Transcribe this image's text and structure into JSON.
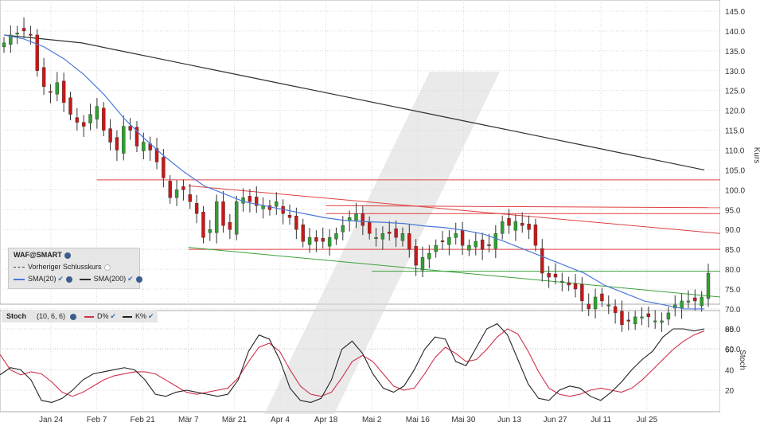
{
  "chart_data": [
    {
      "type": "candlestick",
      "symbol": "WAF@SMART",
      "ylabel": "Kurs",
      "ylim": [
        55,
        145
      ],
      "yticks": [
        "145.0",
        "140.0",
        "135.0",
        "130.0",
        "125.0",
        "120.0",
        "115.0",
        "110.0",
        "105.0",
        "100.0",
        "95.0",
        "90.0",
        "85.0",
        "80.0",
        "75.0",
        "70.0",
        "65.0",
        "60.0"
      ],
      "xticks": [
        "Jan 24",
        "Feb 7",
        "Feb 21",
        "Mär 7",
        "Mär 21",
        "Apr 4",
        "Apr 18",
        "Mai 2",
        "Mai 16",
        "Mai 30",
        "Jun 13",
        "Jun 27",
        "Jul 11",
        "Jul 25"
      ],
      "legend": [
        "Vorheriger Schlusskurs",
        "SMA(20)",
        "SMA(200)"
      ],
      "grid": true,
      "close": [
        137.0,
        139.0,
        139.5,
        140.0,
        139.0,
        130.0,
        126.0,
        124.5,
        127.0,
        122.0,
        119.0,
        117.0,
        116.0,
        119.0,
        121.0,
        115.0,
        112.0,
        110.0,
        116.0,
        115.0,
        111.0,
        112.0,
        110.0,
        107.0,
        103.0,
        98.0,
        100.0,
        100.0,
        97.0,
        94.0,
        88.0,
        90.0,
        97.0,
        91.0,
        90.0,
        97.0,
        98.0,
        97.0,
        96.0,
        96.0,
        95.0,
        97.0,
        94.0,
        93.0,
        90.0,
        87.0,
        88.0,
        87.0,
        87.0,
        88.0,
        89.0,
        91.0,
        93.0,
        94.0,
        91.0,
        89.0,
        88.0,
        89.0,
        89.0,
        88.0,
        89.0,
        85.0,
        81.0,
        83.0,
        84.0,
        86.0,
        87.0,
        88.0,
        89.0,
        86.0,
        86.0,
        87.0,
        85.0,
        86.0,
        89.0,
        92.0,
        91.0,
        92.0,
        91.0,
        90.0,
        86.0,
        79.0,
        78.0,
        78.0,
        77.0,
        76.0,
        75.0,
        72.0,
        70.0,
        73.0,
        72.0,
        71.0,
        69.0,
        66.0,
        67.0,
        68.0,
        68.0,
        68.0,
        67.0,
        67.0,
        69.0,
        71.0,
        72.0,
        72.0,
        72.0,
        73.0,
        79.0
      ],
      "ohlc_note": "daily candles, green = up, red = down",
      "sma20": [
        139.0,
        138.0,
        136.0,
        133.0,
        129.0,
        124.0,
        118.0,
        113.0,
        108.5,
        104.5,
        101.0,
        99.0,
        97.0,
        96.0,
        95.0,
        94.0,
        93.0,
        92.3,
        92.0,
        91.8,
        91.5,
        90.9,
        90.5,
        89.8,
        88.8,
        87.0,
        85.0,
        83.0,
        81.0,
        79.0,
        76.0,
        74.0,
        72.0,
        71.0,
        70.0,
        70.0
      ],
      "sma200": [
        139.0,
        138.0,
        137.0,
        135.0,
        133.0,
        131.0,
        129.0,
        127.0,
        125.0,
        123.0,
        121.0,
        119.0,
        117.0,
        115.0,
        113.0,
        111.0,
        109.0,
        107.0,
        105.0
      ],
      "trend_lines": [
        {
          "from": [
            "Feb 7",
            102.5
          ],
          "to": [
            "Jul 25+",
            102.5
          ],
          "color": "#e04040"
        },
        {
          "from": [
            "Mär 7",
            101.0
          ],
          "to": [
            "Jul 25+",
            89.0
          ],
          "color": "#e04040"
        },
        {
          "from": [
            "Apr 18",
            96.0
          ],
          "to": [
            "Jul 25+",
            95.5
          ],
          "color": "#e04040"
        },
        {
          "from": [
            "Apr 18",
            94.0
          ],
          "to": [
            "Jul 25+",
            94.0
          ],
          "color": "#e04040"
        },
        {
          "from": [
            "Mär 7",
            85.0
          ],
          "to": [
            "Jul 25+",
            85.0
          ],
          "color": "#e04040"
        },
        {
          "from": [
            "Mai 2",
            79.5
          ],
          "to": [
            "Jul 25+",
            79.5
          ],
          "color": "#3aa03a"
        },
        {
          "from": [
            "Mär 7",
            85.5
          ],
          "to": [
            "Jul 25+",
            73.0
          ],
          "color": "#3aa03a"
        }
      ]
    },
    {
      "type": "line",
      "title": "Stoch",
      "params": "(10, 6, 6)",
      "ylabel": "Stoch",
      "ylim": [
        0,
        90
      ],
      "yticks": [
        "80",
        "60",
        "40",
        "20"
      ],
      "series": [
        {
          "name": "D%",
          "color": "#d0304a",
          "values": [
            55,
            40,
            35,
            38,
            36,
            28,
            18,
            14,
            18,
            24,
            30,
            34,
            36,
            38,
            38,
            36,
            30,
            24,
            18,
            16,
            18,
            20,
            22,
            32,
            48,
            62,
            66,
            58,
            40,
            24,
            16,
            14,
            18,
            32,
            48,
            54,
            48,
            36,
            24,
            20,
            22,
            36,
            52,
            62,
            56,
            48,
            50,
            60,
            72,
            80,
            75,
            58,
            38,
            22,
            16,
            14,
            16,
            20,
            22,
            20,
            18,
            22,
            30,
            40,
            50,
            60,
            68,
            74,
            78
          ]
        },
        {
          "name": "K%",
          "color": "#222222",
          "values": [
            35,
            42,
            40,
            30,
            10,
            8,
            12,
            20,
            30,
            36,
            38,
            40,
            42,
            40,
            30,
            16,
            14,
            18,
            20,
            18,
            16,
            14,
            16,
            30,
            58,
            74,
            70,
            50,
            22,
            10,
            8,
            12,
            30,
            60,
            68,
            56,
            36,
            22,
            18,
            24,
            40,
            60,
            72,
            70,
            48,
            44,
            62,
            80,
            85,
            74,
            50,
            26,
            12,
            10,
            20,
            24,
            22,
            14,
            10,
            18,
            28,
            40,
            50,
            58,
            72,
            80,
            80,
            78,
            80
          ]
        }
      ]
    }
  ],
  "legend_box": {
    "symbol": "WAF@SMART",
    "prev_close": "Vorheriger Schlusskurs",
    "sma20": "SMA(20)",
    "sma200": "SMA(200)"
  },
  "stoch_legend": {
    "title": "Stoch",
    "params": "(10, 6, 6)",
    "d": "D%",
    "k": "K%"
  },
  "colors": {
    "up": "#2fa02f",
    "down": "#c81818",
    "sma20": "#4a78d8",
    "sma200": "#303030",
    "grid": "#d8d8d8",
    "bg": "#ffffff",
    "panel_bg": "#ececec"
  }
}
